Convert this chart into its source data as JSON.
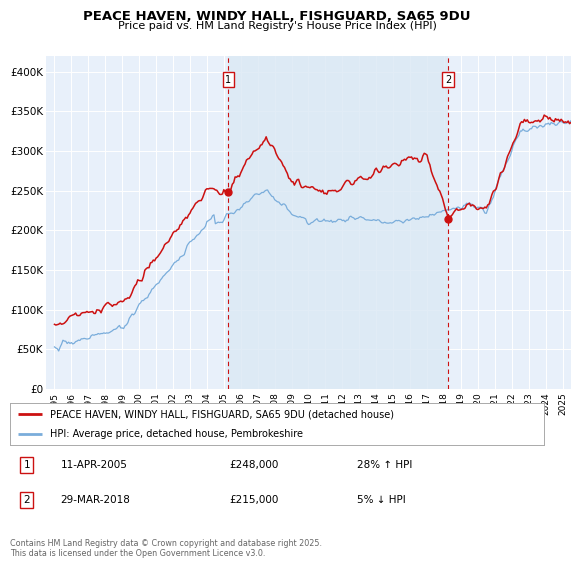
{
  "title": "PEACE HAVEN, WINDY HALL, FISHGUARD, SA65 9DU",
  "subtitle": "Price paid vs. HM Land Registry's House Price Index (HPI)",
  "footnote": "Contains HM Land Registry data © Crown copyright and database right 2025.\nThis data is licensed under the Open Government Licence v3.0.",
  "legend_line1": "PEACE HAVEN, WINDY HALL, FISHGUARD, SA65 9DU (detached house)",
  "legend_line2": "HPI: Average price, detached house, Pembrokeshire",
  "marker1_date": "11-APR-2005",
  "marker1_price": "£248,000",
  "marker1_hpi": "28% ↑ HPI",
  "marker2_date": "29-MAR-2018",
  "marker2_price": "£215,000",
  "marker2_hpi": "5% ↓ HPI",
  "marker1_x": 2005.27,
  "marker1_y": 248000,
  "marker2_x": 2018.24,
  "marker2_y": 215000,
  "red_color": "#cc1111",
  "blue_color": "#7aaddb",
  "shade_color": "#dce9f5",
  "background_color": "#e8f0fa",
  "ylim": [
    0,
    420000
  ],
  "xlim": [
    1994.5,
    2025.5
  ],
  "yticks": [
    0,
    50000,
    100000,
    150000,
    200000,
    250000,
    300000,
    350000,
    400000
  ],
  "ytick_labels": [
    "£0",
    "£50K",
    "£100K",
    "£150K",
    "£200K",
    "£250K",
    "£300K",
    "£350K",
    "£400K"
  ],
  "xticks": [
    1995,
    1996,
    1997,
    1998,
    1999,
    2000,
    2001,
    2002,
    2003,
    2004,
    2005,
    2006,
    2007,
    2008,
    2009,
    2010,
    2011,
    2012,
    2013,
    2014,
    2015,
    2016,
    2017,
    2018,
    2019,
    2020,
    2021,
    2022,
    2023,
    2024,
    2025
  ]
}
